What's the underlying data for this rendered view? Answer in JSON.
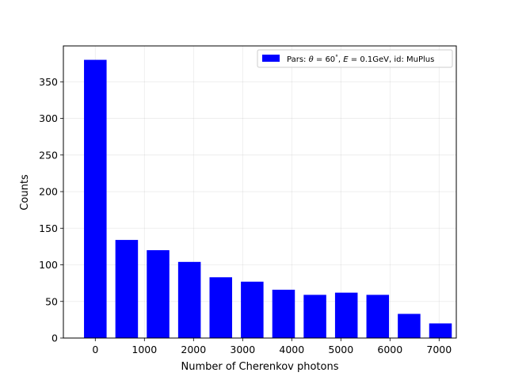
{
  "chart_data": {
    "type": "bar",
    "x": [
      0,
      638.9,
      1277.8,
      1916.7,
      2555.6,
      3194.4,
      3833.3,
      4472.2,
      5111.1,
      5750,
      6388.9,
      7027.8
    ],
    "values": [
      380,
      134,
      120,
      104,
      83,
      77,
      66,
      59,
      62,
      59,
      33,
      20
    ],
    "xlabel": "Number of Cherenkov photons",
    "ylabel": "Counts",
    "xticks": [
      0,
      1000,
      2000,
      3000,
      4000,
      5000,
      6000,
      7000
    ],
    "yticks": [
      0,
      50,
      100,
      150,
      200,
      250,
      300,
      350
    ],
    "xlim": [
      -650,
      7350
    ],
    "ylim": [
      0,
      399
    ],
    "grid": true,
    "legend_position": "top-right",
    "series": [
      {
        "name": "Pars: θ = 60°, E = 0.1GeV, id: MuPlus",
        "color": "#0000ff"
      }
    ],
    "legend": {
      "prefix": "Pars: ",
      "theta_symbol": "θ",
      "theta_eq": " = 60",
      "degree": "°",
      "comma1": ", ",
      "energy_symbol": "E",
      "energy_eq": " = 0.1GeV, id: MuPlus"
    }
  }
}
